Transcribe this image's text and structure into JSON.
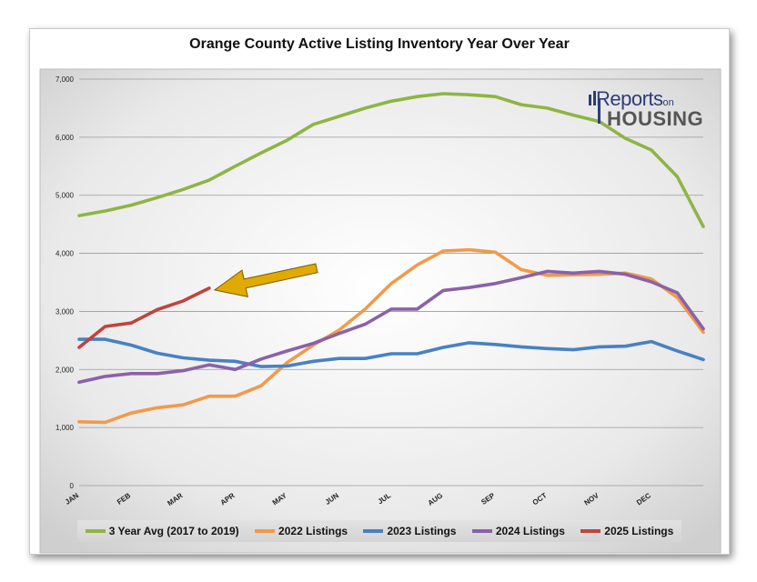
{
  "chart_data": {
    "type": "line",
    "title": "Orange County Active Listing Inventory Year Over Year",
    "x_labels": [
      "JAN",
      "FEB",
      "MAR",
      "APR",
      "MAY",
      "JUN",
      "JUL",
      "AUG",
      "SEP",
      "OCT",
      "NOV",
      "DEC"
    ],
    "ylim": [
      0,
      7000
    ],
    "y_ticks": [
      0,
      1000,
      2000,
      3000,
      4000,
      5000,
      6000,
      7000
    ],
    "y_tick_labels": [
      "0",
      "1,000",
      "2,000",
      "3,000",
      "4,000",
      "5,000",
      "6,000",
      "7,000"
    ],
    "grid": true,
    "legend_position": "bottom",
    "series": [
      {
        "name": "3 Year Avg (2017 to 2019)",
        "color": "#8db544",
        "x": [
          0,
          0.5,
          1,
          1.5,
          2,
          2.5,
          3,
          3.5,
          4,
          4.5,
          5,
          5.5,
          6,
          6.5,
          7,
          7.5,
          8,
          8.5,
          9,
          9.5,
          10,
          10.5,
          11,
          11.5,
          12
        ],
        "values": [
          4650,
          4730,
          4830,
          4960,
          5100,
          5260,
          5500,
          5730,
          5950,
          6220,
          6360,
          6500,
          6620,
          6700,
          6750,
          6730,
          6700,
          6560,
          6500,
          6380,
          6270,
          5980,
          5780,
          5320,
          4460
        ]
      },
      {
        "name": "2022 Listings",
        "color": "#f19a4b",
        "x": [
          0,
          0.5,
          1,
          1.5,
          2,
          2.5,
          3,
          3.5,
          4,
          4.5,
          5,
          5.5,
          6,
          6.5,
          7,
          7.5,
          8,
          8.5,
          9,
          9.5,
          10,
          10.5,
          11,
          11.5,
          12
        ],
        "values": [
          1100,
          1090,
          1250,
          1340,
          1390,
          1540,
          1540,
          1720,
          2120,
          2420,
          2680,
          3040,
          3480,
          3800,
          4040,
          4060,
          4020,
          3720,
          3620,
          3630,
          3640,
          3660,
          3560,
          3240,
          2640
        ]
      },
      {
        "name": "2023 Listings",
        "color": "#4781c4",
        "x": [
          0,
          0.5,
          1,
          1.5,
          2,
          2.5,
          3,
          3.5,
          4,
          4.5,
          5,
          5.5,
          6,
          6.5,
          7,
          7.5,
          8,
          8.5,
          9,
          9.5,
          10,
          10.5,
          11,
          11.5,
          12
        ],
        "values": [
          2520,
          2520,
          2420,
          2280,
          2200,
          2160,
          2140,
          2050,
          2060,
          2140,
          2190,
          2190,
          2270,
          2270,
          2380,
          2460,
          2430,
          2390,
          2360,
          2340,
          2390,
          2400,
          2480,
          2320,
          2170
        ]
      },
      {
        "name": "2024 Listings",
        "color": "#8a62a8",
        "x": [
          0,
          0.5,
          1,
          1.5,
          2,
          2.5,
          3,
          3.5,
          4,
          4.5,
          5,
          5.5,
          6,
          6.5,
          7,
          7.5,
          8,
          8.5,
          9,
          9.5,
          10,
          10.5,
          11,
          11.5,
          12
        ],
        "values": [
          1780,
          1880,
          1930,
          1930,
          1980,
          2080,
          2000,
          2180,
          2320,
          2450,
          2620,
          2780,
          3040,
          3040,
          3360,
          3410,
          3480,
          3580,
          3690,
          3660,
          3690,
          3640,
          3510,
          3320,
          2700
        ]
      },
      {
        "name": "2025 Listings",
        "color": "#c0433f",
        "x": [
          0,
          0.5,
          1,
          1.5,
          2,
          2.5
        ],
        "values": [
          2380,
          2740,
          2800,
          3030,
          3180,
          3400
        ]
      }
    ]
  },
  "logo": {
    "line1_main": "Reports",
    "line1_small": "on",
    "line2": "HOUSING"
  },
  "annotation_arrow": {
    "color": "#e1aa00",
    "target_series": "2025 Listings"
  }
}
